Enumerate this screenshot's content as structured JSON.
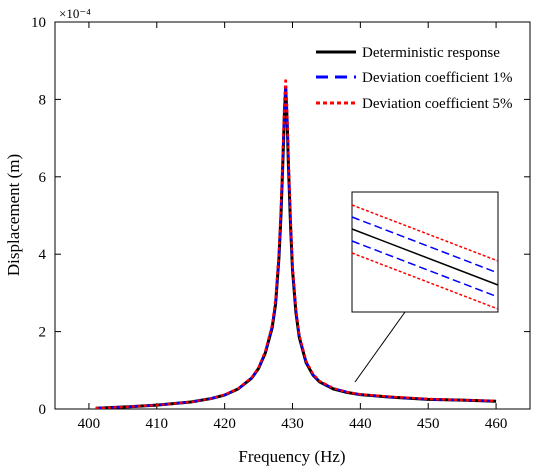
{
  "chart_data": {
    "type": "line",
    "xlabel": "Frequency (Hz)",
    "ylabel": "Displacement (m)",
    "xlim": [
      395,
      465
    ],
    "ylim": [
      0,
      10
    ],
    "y_multiplier": "×10⁻⁴",
    "xticks": [
      "400",
      "410",
      "420",
      "430",
      "440",
      "450",
      "460"
    ],
    "yticks": [
      "0",
      "2",
      "4",
      "6",
      "8",
      "10"
    ],
    "legend_position": "top-right",
    "series": [
      {
        "name": "Deterministic response",
        "color": "#000000",
        "style": "solid",
        "x": [
          401,
          405,
          410,
          415,
          418,
          420,
          422,
          424,
          425,
          426,
          427,
          427.5,
          428,
          428.3,
          428.6,
          428.8,
          429,
          429.2,
          429.4,
          429.7,
          430,
          430.5,
          431,
          432,
          433,
          434,
          436,
          438,
          440,
          445,
          450,
          455,
          460
        ],
        "values": [
          0.02,
          0.05,
          0.1,
          0.18,
          0.27,
          0.36,
          0.52,
          0.8,
          1.05,
          1.45,
          2.1,
          2.7,
          3.9,
          5.0,
          6.5,
          7.6,
          8.3,
          7.5,
          6.3,
          4.8,
          3.6,
          2.5,
          1.85,
          1.2,
          0.88,
          0.7,
          0.52,
          0.43,
          0.37,
          0.3,
          0.25,
          0.23,
          0.2
        ]
      },
      {
        "name": "Deviation coefficient 1%",
        "color": "#0000ff",
        "style": "dashed",
        "x": [
          401,
          405,
          410,
          415,
          418,
          420,
          422,
          424,
          425,
          426,
          427,
          427.5,
          428,
          428.3,
          428.6,
          428.8,
          429,
          429.2,
          429.4,
          429.7,
          430,
          430.5,
          431,
          432,
          433,
          434,
          436,
          438,
          440,
          445,
          450,
          455,
          460
        ],
        "values": [
          0.02,
          0.05,
          0.1,
          0.18,
          0.27,
          0.36,
          0.52,
          0.8,
          1.05,
          1.47,
          2.13,
          2.75,
          3.95,
          5.1,
          6.6,
          7.75,
          8.4,
          7.65,
          6.4,
          4.9,
          3.65,
          2.55,
          1.88,
          1.22,
          0.89,
          0.71,
          0.53,
          0.44,
          0.37,
          0.3,
          0.25,
          0.23,
          0.2
        ]
      },
      {
        "name": "Deviation coefficient 5%",
        "color": "#ff0000",
        "style": "dotted",
        "x": [
          401,
          405,
          410,
          415,
          418,
          420,
          422,
          424,
          425,
          426,
          427,
          427.5,
          428,
          428.3,
          428.6,
          428.8,
          429,
          429.2,
          429.4,
          429.7,
          430,
          430.5,
          431,
          432,
          433,
          434,
          436,
          438,
          440,
          445,
          450,
          455,
          460
        ],
        "values": [
          0.02,
          0.05,
          0.1,
          0.18,
          0.27,
          0.37,
          0.53,
          0.82,
          1.07,
          1.5,
          2.18,
          2.85,
          4.1,
          5.3,
          6.85,
          8.0,
          8.55,
          7.85,
          6.6,
          5.05,
          3.75,
          2.62,
          1.92,
          1.25,
          0.91,
          0.72,
          0.54,
          0.44,
          0.38,
          0.31,
          0.26,
          0.23,
          0.21
        ]
      }
    ]
  }
}
